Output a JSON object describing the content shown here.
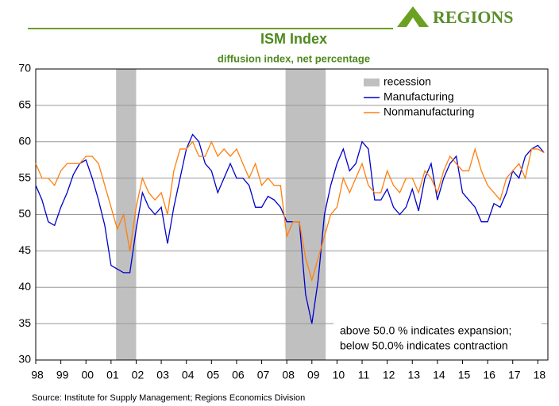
{
  "logo": "REGIONS",
  "chart_data": {
    "type": "line",
    "title": "ISM Index",
    "subtitle": "diffusion index, net percentage",
    "source": "Source: Institute for Supply Management; Regions Economics Division",
    "annotations": [
      "above 50.0 % indicates expansion;",
      "below 50.0% indicates contraction"
    ],
    "recession_label": "recession",
    "recession_color": "#c0c0c0",
    "recessions": [
      [
        2001.2,
        2002.0
      ],
      [
        2007.95,
        2009.55
      ]
    ],
    "x": [
      1998,
      1998.25,
      1998.5,
      1998.75,
      1999,
      1999.25,
      1999.5,
      1999.75,
      2000,
      2000.25,
      2000.5,
      2000.75,
      2001,
      2001.25,
      2001.5,
      2001.75,
      2002,
      2002.25,
      2002.5,
      2002.75,
      2003,
      2003.25,
      2003.5,
      2003.75,
      2004,
      2004.25,
      2004.5,
      2004.75,
      2005,
      2005.25,
      2005.5,
      2005.75,
      2006,
      2006.25,
      2006.5,
      2006.75,
      2007,
      2007.25,
      2007.5,
      2007.75,
      2008,
      2008.25,
      2008.5,
      2008.75,
      2009,
      2009.25,
      2009.5,
      2009.75,
      2010,
      2010.25,
      2010.5,
      2010.75,
      2011,
      2011.25,
      2011.5,
      2011.75,
      2012,
      2012.25,
      2012.5,
      2012.75,
      2013,
      2013.25,
      2013.5,
      2013.75,
      2014,
      2014.25,
      2014.5,
      2014.75,
      2015,
      2015.25,
      2015.5,
      2015.75,
      2016,
      2016.25,
      2016.5,
      2016.75,
      2017,
      2017.25,
      2017.5,
      2017.75,
      2018,
      2018.25
    ],
    "series": [
      {
        "name": "Manufacturing",
        "color": "#0000cc",
        "values": [
          54,
          52,
          49,
          48.5,
          51,
          53,
          55.5,
          57,
          57.5,
          55,
          52,
          48.5,
          43,
          42.5,
          42,
          42,
          48,
          53,
          51,
          50,
          51,
          46,
          51,
          55,
          59,
          61,
          60,
          57,
          56,
          53,
          55,
          57,
          55,
          55,
          54,
          51,
          51,
          52.5,
          52,
          51,
          49,
          49,
          49,
          39,
          35,
          41,
          50,
          54,
          57,
          59,
          56,
          57,
          60,
          59,
          52,
          52,
          53.5,
          51,
          50,
          51,
          53.5,
          50.5,
          55,
          57,
          52,
          55,
          57,
          58,
          53,
          52,
          51,
          49,
          49,
          51.5,
          51,
          53,
          56,
          55,
          58,
          59,
          59.5,
          58.5
        ]
      },
      {
        "name": "Nonmanufacturing",
        "color": "#ff7f0e",
        "values": [
          57,
          55,
          55,
          54,
          56,
          57,
          57,
          57,
          58,
          58,
          57,
          54,
          51,
          48,
          50,
          45,
          51,
          55,
          53,
          52,
          53,
          50,
          56,
          59,
          59,
          60,
          58,
          58,
          60,
          58,
          59,
          58,
          59,
          57,
          55,
          57,
          54,
          55,
          54,
          54,
          47,
          49,
          49,
          44,
          41,
          44,
          47,
          50,
          51,
          55,
          53,
          55,
          57,
          54,
          53,
          53,
          56,
          54,
          53,
          55,
          55,
          53,
          56,
          55,
          53,
          56,
          58,
          57,
          56,
          56,
          59,
          56,
          54,
          53,
          52,
          55,
          56,
          57,
          55,
          59,
          59,
          58.5
        ]
      }
    ],
    "xlim": [
      1998,
      2018.4
    ],
    "xticks": [
      {
        "value": 1998,
        "label": "98"
      },
      {
        "value": 1999,
        "label": "99"
      },
      {
        "value": 2000,
        "label": "00"
      },
      {
        "value": 2001,
        "label": "01"
      },
      {
        "value": 2002,
        "label": "02"
      },
      {
        "value": 2003,
        "label": "03"
      },
      {
        "value": 2004,
        "label": "04"
      },
      {
        "value": 2005,
        "label": "05"
      },
      {
        "value": 2006,
        "label": "06"
      },
      {
        "value": 2007,
        "label": "07"
      },
      {
        "value": 2008,
        "label": "08"
      },
      {
        "value": 2009,
        "label": "09"
      },
      {
        "value": 2010,
        "label": "10"
      },
      {
        "value": 2011,
        "label": "11"
      },
      {
        "value": 2012,
        "label": "12"
      },
      {
        "value": 2013,
        "label": "13"
      },
      {
        "value": 2014,
        "label": "14"
      },
      {
        "value": 2015,
        "label": "15"
      },
      {
        "value": 2016,
        "label": "16"
      },
      {
        "value": 2017,
        "label": "17"
      },
      {
        "value": 2018,
        "label": "18"
      }
    ],
    "ylim": [
      30,
      70
    ],
    "yticks": [
      30,
      35,
      40,
      45,
      50,
      55,
      60,
      65,
      70
    ],
    "grid": true
  }
}
